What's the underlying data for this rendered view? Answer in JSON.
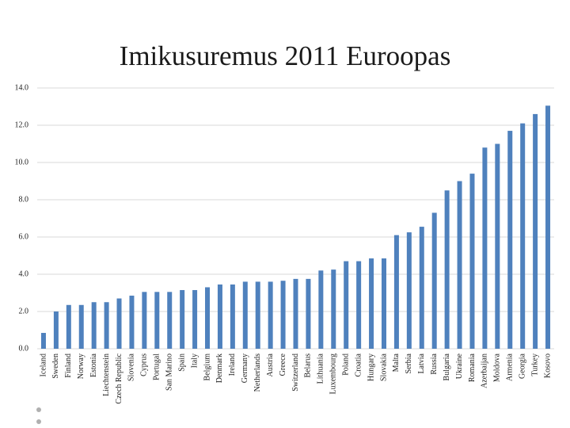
{
  "chart_data": {
    "type": "bar",
    "title": "Imikusuremus 2011 Euroopas",
    "categories": [
      "Iceland",
      "Sweden",
      "Finland",
      "Norway",
      "Estonia",
      "Liechtenstein",
      "Czech Republic",
      "Slovenia",
      "Cyprus",
      "Portugal",
      "San Marino",
      "Spain",
      "Italy",
      "Belgium",
      "Denmark",
      "Ireland",
      "Germany",
      "Netherlands",
      "Austria",
      "Greece",
      "Switzerland",
      "Belarus",
      "Lithuania",
      "Luxembourg",
      "Poland",
      "Croatia",
      "Hungary",
      "Slovakia",
      "Malta",
      "Serbia",
      "Latvia",
      "Russia",
      "Bulgaria",
      "Ukraine",
      "Romania",
      "Azerbaijan",
      "Moldova",
      "Armenia",
      "Georgia",
      "Turkey",
      "Kosovo"
    ],
    "values": [
      0.85,
      2.0,
      2.35,
      2.35,
      2.5,
      2.5,
      2.7,
      2.85,
      3.05,
      3.05,
      3.05,
      3.15,
      3.15,
      3.3,
      3.45,
      3.45,
      3.6,
      3.6,
      3.6,
      3.65,
      3.75,
      3.75,
      4.2,
      4.25,
      4.7,
      4.7,
      4.85,
      4.85,
      6.1,
      6.25,
      6.55,
      7.3,
      8.5,
      9.0,
      9.4,
      10.8,
      11.0,
      11.7,
      12.1,
      12.6,
      13.05
    ],
    "color": "#4f81bd",
    "ylim": [
      0,
      14
    ],
    "yticks": [
      {
        "value": 0,
        "label": "0.0"
      },
      {
        "value": 2,
        "label": "2.0"
      },
      {
        "value": 4,
        "label": "4.0"
      },
      {
        "value": 6,
        "label": "6.0"
      },
      {
        "value": 8,
        "label": "8.0"
      },
      {
        "value": 10,
        "label": "10.0"
      },
      {
        "value": 12,
        "label": "12.0"
      },
      {
        "value": 14,
        "label": "14.0"
      }
    ],
    "grid": true
  }
}
